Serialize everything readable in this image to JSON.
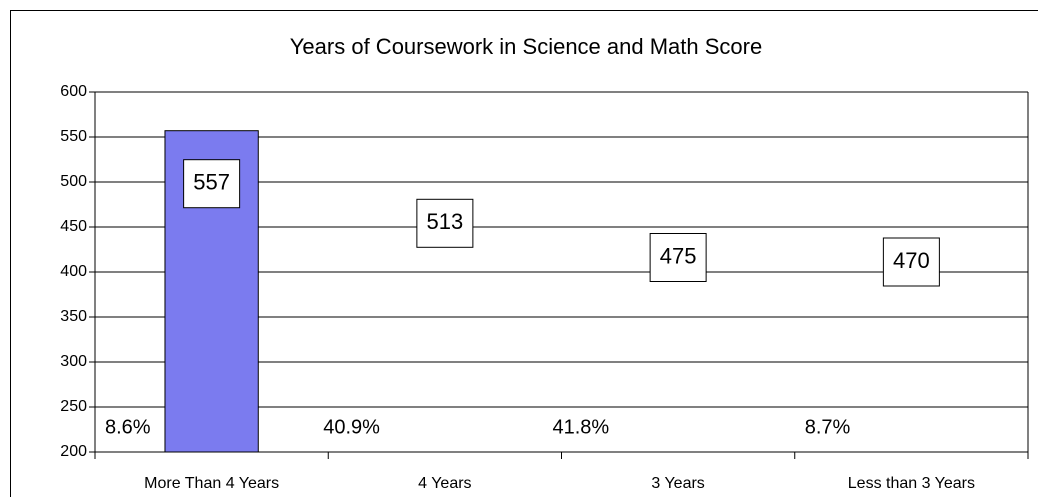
{
  "chart_data": {
    "type": "bar",
    "title": "Years of Coursework in Science and Math Score",
    "categories": [
      "More Than 4 Years",
      "4 Years",
      "3 Years",
      "Less than 3 Years"
    ],
    "values": [
      557,
      513,
      475,
      470
    ],
    "colors": [
      "#7b7bef",
      "none",
      "none",
      "none"
    ],
    "annotations": [
      "8.6%",
      "40.9%",
      "41.8%",
      "8.7%"
    ],
    "ylim": [
      200,
      600
    ],
    "yticks": [
      200,
      250,
      300,
      350,
      400,
      450,
      500,
      550,
      600
    ],
    "grid": true
  }
}
